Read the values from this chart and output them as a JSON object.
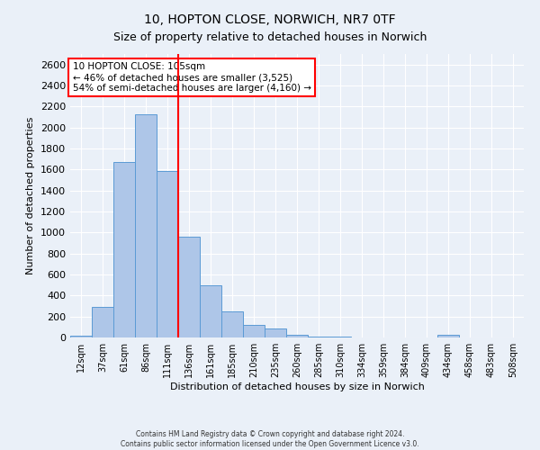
{
  "title": "10, HOPTON CLOSE, NORWICH, NR7 0TF",
  "subtitle": "Size of property relative to detached houses in Norwich",
  "xlabel": "Distribution of detached houses by size in Norwich",
  "ylabel": "Number of detached properties",
  "bar_labels": [
    "12sqm",
    "37sqm",
    "61sqm",
    "86sqm",
    "111sqm",
    "136sqm",
    "161sqm",
    "185sqm",
    "210sqm",
    "235sqm",
    "260sqm",
    "285sqm",
    "310sqm",
    "334sqm",
    "359sqm",
    "384sqm",
    "409sqm",
    "434sqm",
    "458sqm",
    "483sqm",
    "508sqm"
  ],
  "bar_values": [
    20,
    290,
    1670,
    2130,
    1590,
    960,
    500,
    250,
    120,
    90,
    30,
    10,
    5,
    3,
    3,
    3,
    3,
    25,
    3,
    3,
    3
  ],
  "bar_color": "#aec6e8",
  "bar_edge_color": "#5b9bd5",
  "vline_x_index": 4,
  "vline_color": "red",
  "ylim": [
    0,
    2700
  ],
  "yticks": [
    0,
    200,
    400,
    600,
    800,
    1000,
    1200,
    1400,
    1600,
    1800,
    2000,
    2200,
    2400,
    2600
  ],
  "annotation_title": "10 HOPTON CLOSE: 105sqm",
  "annotation_line1": "← 46% of detached houses are smaller (3,525)",
  "annotation_line2": "54% of semi-detached houses are larger (4,160) →",
  "annotation_box_color": "#ffffff",
  "annotation_box_edge_color": "red",
  "footer1": "Contains HM Land Registry data © Crown copyright and database right 2024.",
  "footer2": "Contains public sector information licensed under the Open Government Licence v3.0.",
  "background_color": "#eaf0f8",
  "grid_color": "#ffffff"
}
